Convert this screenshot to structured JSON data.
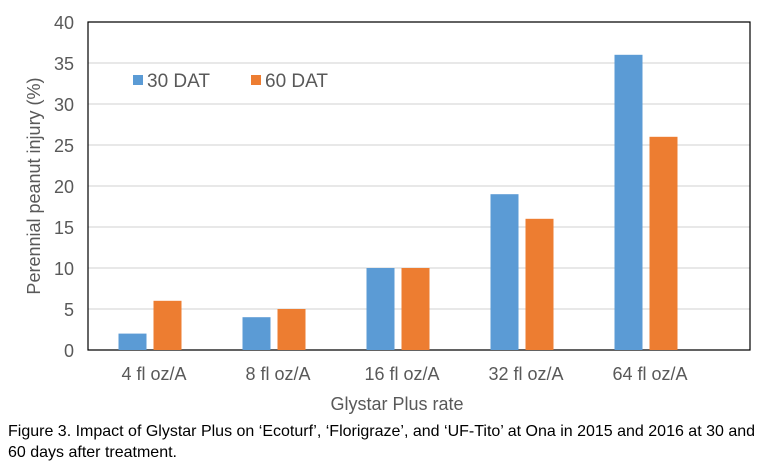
{
  "chart_data": {
    "type": "bar",
    "categories": [
      "4 fl oz/A",
      "8 fl oz/A",
      "16 fl oz/A",
      "32 fl oz/A",
      "64 fl oz/A"
    ],
    "series": [
      {
        "name": "30 DAT",
        "values": [
          2,
          4,
          10,
          19,
          36
        ],
        "color": "#5b9bd5"
      },
      {
        "name": "60 DAT",
        "values": [
          6,
          5,
          10,
          16,
          26
        ],
        "color": "#ed7d31"
      }
    ],
    "xlabel": "Glystar Plus rate",
    "ylabel": "Perennial peanut injury (%)",
    "ylim": [
      0,
      40
    ],
    "yticks": [
      0,
      5,
      10,
      15,
      20,
      25,
      30,
      35,
      40
    ],
    "grid": true,
    "legend": "top-left"
  },
  "caption": "Figure 3. Impact of Glystar Plus on ‘Ecoturf’, ‘Florigraze’, and ‘UF-Tito’ at Ona in 2015 and 2016 at 30 and 60 days after treatment."
}
